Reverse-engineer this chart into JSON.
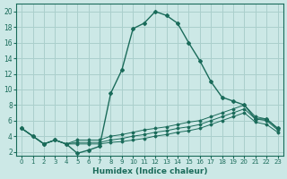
{
  "xlabel": "Humidex (Indice chaleur)",
  "background_color": "#cce8e6",
  "grid_color": "#aacfcc",
  "line_color": "#1a6b5a",
  "xlim": [
    -0.5,
    23.5
  ],
  "ylim": [
    1.5,
    21
  ],
  "xticks": [
    0,
    1,
    2,
    3,
    4,
    5,
    6,
    7,
    8,
    9,
    10,
    11,
    12,
    13,
    14,
    15,
    16,
    17,
    18,
    19,
    20,
    21,
    22,
    23
  ],
  "yticks": [
    2,
    4,
    6,
    8,
    10,
    12,
    14,
    16,
    18,
    20
  ],
  "series1_x": [
    0,
    1,
    2,
    3,
    4,
    5,
    6,
    7,
    8,
    9,
    10,
    11,
    12,
    13,
    14,
    15,
    16,
    17,
    18,
    19,
    20,
    21,
    22,
    23
  ],
  "series1_y": [
    5,
    4,
    3,
    3.5,
    3,
    1.8,
    2.2,
    2.7,
    9.5,
    12.5,
    17.8,
    18.5,
    20,
    19.5,
    18.5,
    16,
    13.7,
    11,
    9,
    8.5,
    8,
    6.2,
    6.2,
    5
  ],
  "series2_x": [
    0,
    1,
    2,
    3,
    4,
    5,
    6,
    7,
    8,
    9,
    10,
    11,
    12,
    13,
    14,
    15,
    16,
    17,
    18,
    19,
    20,
    21,
    22,
    23
  ],
  "series2_y": [
    5,
    4,
    3,
    3.5,
    3,
    3.5,
    3.5,
    3.5,
    4,
    4.2,
    4.5,
    4.8,
    5,
    5.2,
    5.5,
    5.8,
    6,
    6.5,
    7,
    7.5,
    8,
    6.5,
    6.2,
    5
  ],
  "series3_x": [
    0,
    1,
    2,
    3,
    4,
    5,
    6,
    7,
    8,
    9,
    10,
    11,
    12,
    13,
    14,
    15,
    16,
    17,
    18,
    19,
    20,
    21,
    22,
    23
  ],
  "series3_y": [
    5,
    4,
    3,
    3.5,
    3,
    3.2,
    3.2,
    3.2,
    3.5,
    3.7,
    4,
    4.2,
    4.5,
    4.7,
    5,
    5.2,
    5.5,
    6,
    6.5,
    7,
    7.5,
    6.2,
    6,
    4.8
  ],
  "series4_x": [
    0,
    1,
    2,
    3,
    4,
    5,
    6,
    7,
    8,
    9,
    10,
    11,
    12,
    13,
    14,
    15,
    16,
    17,
    18,
    19,
    20,
    21,
    22,
    23
  ],
  "series4_y": [
    5,
    4,
    3,
    3.5,
    3,
    3,
    3,
    3,
    3.2,
    3.3,
    3.5,
    3.7,
    4,
    4.2,
    4.5,
    4.7,
    5,
    5.5,
    6,
    6.5,
    7,
    5.8,
    5.5,
    4.5
  ]
}
